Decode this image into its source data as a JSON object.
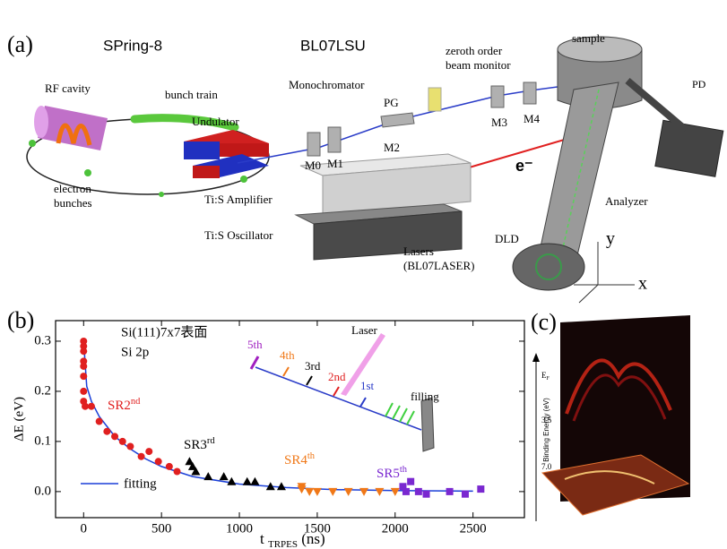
{
  "panel_a": {
    "label": "(a)",
    "facility": "SPring-8",
    "beamline": "BL07LSU",
    "monitor": [
      "zeroth order",
      "beam monitor"
    ],
    "sample": "sample",
    "pd": "PD",
    "rf_cavity": "RF cavity",
    "bunch_train": "bunch train",
    "monochromator": "Monochromator",
    "pg": "PG",
    "mirrors": [
      "M0",
      "M1",
      "M2",
      "M3",
      "M4"
    ],
    "undulator": "Undulator",
    "electron_bunches": [
      "electron",
      "bunches"
    ],
    "electron": "e⁻",
    "amplifier": "Ti:S Amplifier",
    "oscillator": "Ti:S Oscillator",
    "lasers": [
      "Lasers",
      "(BL07LASER)"
    ],
    "analyzer": "Analyzer",
    "dld": "DLD",
    "axis_y": "y",
    "axis_x": "x"
  },
  "chart_data": {
    "type": "scatter",
    "panel_label": "(b)",
    "annotations": [
      "Si(111)7x7表面",
      "Si 2p"
    ],
    "inset_labels": [
      "5th",
      "4th",
      "3rd",
      "2nd",
      "1st",
      "Laser",
      "filling"
    ],
    "xlabel": {
      "main": "t",
      "sub": "TRPES",
      "unit": "(ns)"
    },
    "ylabel": "ΔE (eV)",
    "xlim": [
      -180,
      2830
    ],
    "ylim": [
      -0.052,
      0.341
    ],
    "xticks": [
      0,
      500,
      1000,
      1500,
      2000,
      2500
    ],
    "yticks": [
      {
        "value": 0,
        "label": "0.0"
      },
      0.1,
      0.2,
      0.3
    ],
    "series": [
      {
        "name": "SR2nd",
        "color": "#e02020",
        "marker": "circle",
        "x": [
          0,
          0,
          0,
          0,
          0,
          0,
          0,
          0,
          10,
          50,
          100,
          150,
          200,
          250,
          300,
          370,
          420,
          480,
          550,
          600
        ],
        "values": [
          0.3,
          0.29,
          0.28,
          0.26,
          0.25,
          0.23,
          0.2,
          0.18,
          0.17,
          0.17,
          0.14,
          0.12,
          0.11,
          0.1,
          0.09,
          0.07,
          0.08,
          0.06,
          0.05,
          0.04
        ]
      },
      {
        "name": "SR3rd",
        "color": "#000000",
        "marker": "triangle-up",
        "x": [
          680,
          700,
          720,
          800,
          900,
          950,
          1050,
          1100,
          1200,
          1270
        ],
        "values": [
          0.06,
          0.05,
          0.04,
          0.03,
          0.03,
          0.02,
          0.02,
          0.02,
          0.01,
          0.01
        ]
      },
      {
        "name": "SR4th",
        "color": "#f07818",
        "marker": "triangle-down",
        "x": [
          1400,
          1400,
          1450,
          1500,
          1600,
          1700,
          1800,
          1900,
          2000
        ],
        "values": [
          0.01,
          0.005,
          0,
          0,
          0,
          0,
          0,
          0,
          0
        ]
      },
      {
        "name": "SR5th",
        "color": "#7a28d0",
        "marker": "square",
        "x": [
          2050,
          2070,
          2100,
          2150,
          2200,
          2350,
          2450,
          2550
        ],
        "values": [
          0.01,
          0,
          0.02,
          0,
          -0.005,
          0,
          -0.005,
          0.005
        ]
      }
    ],
    "fit": {
      "name": "fitting",
      "color": "#1a3fd8",
      "x": [
        0,
        20,
        50,
        100,
        200,
        300,
        400,
        500,
        700,
        1000,
        1300,
        1600,
        2000,
        2500
      ],
      "values": [
        0.3,
        0.21,
        0.18,
        0.15,
        0.11,
        0.085,
        0.065,
        0.05,
        0.03,
        0.015,
        0.008,
        0.004,
        0.002,
        0.001
      ]
    }
  },
  "panel_c": {
    "label": "(c)",
    "ef": "E",
    "ef_sub": "F",
    "ticks": [
      "3.5",
      "7.0"
    ],
    "axis_label": "Binding Energy (eV)"
  }
}
